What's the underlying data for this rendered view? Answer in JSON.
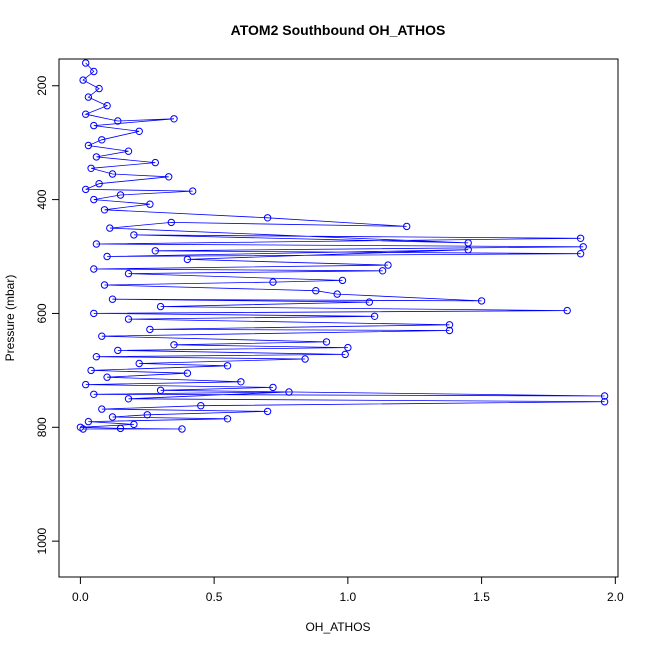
{
  "chart_data": {
    "type": "scatter",
    "title": "ATOM2 Southbound OH_ATHOS",
    "xlabel": "OH_ATHOS",
    "ylabel": "Pressure (mbar)",
    "xlim": [
      -0.08,
      2.01
    ],
    "ylim": [
      1063,
      153
    ],
    "y_reversed": true,
    "x_ticks": [
      0.0,
      0.5,
      1.0,
      1.5,
      2.0
    ],
    "x_tick_labels": [
      "0.0",
      "0.5",
      "1.0",
      "1.5",
      "2.0"
    ],
    "y_ticks": [
      200,
      400,
      600,
      800,
      1000
    ],
    "y_tick_labels": [
      "200",
      "400",
      "600",
      "800",
      "1000"
    ],
    "grid": false,
    "legend": "none",
    "marker": "open-circle",
    "connect_points": true,
    "color": "#0000ff",
    "series": [
      {
        "points": [
          [
            0.02,
            160
          ],
          [
            0.05,
            175
          ],
          [
            0.01,
            190
          ],
          [
            0.07,
            205
          ],
          [
            0.03,
            220
          ],
          [
            0.1,
            235
          ],
          [
            0.02,
            250
          ],
          [
            0.14,
            262
          ],
          [
            0.35,
            258
          ],
          [
            0.05,
            270
          ],
          [
            0.22,
            280
          ],
          [
            0.08,
            295
          ],
          [
            0.03,
            305
          ],
          [
            0.18,
            315
          ],
          [
            0.06,
            325
          ],
          [
            0.28,
            335
          ],
          [
            0.04,
            345
          ],
          [
            0.12,
            355
          ],
          [
            0.33,
            360
          ],
          [
            0.07,
            372
          ],
          [
            0.02,
            382
          ],
          [
            0.42,
            385
          ],
          [
            0.15,
            392
          ],
          [
            0.05,
            400
          ],
          [
            0.26,
            408
          ],
          [
            0.09,
            418
          ],
          [
            0.7,
            432
          ],
          [
            1.22,
            447
          ],
          [
            0.34,
            440
          ],
          [
            0.11,
            450
          ],
          [
            1.45,
            476
          ],
          [
            0.2,
            462
          ],
          [
            1.87,
            468
          ],
          [
            0.06,
            478
          ],
          [
            1.88,
            483
          ],
          [
            0.28,
            490
          ],
          [
            1.87,
            495
          ],
          [
            0.1,
            500
          ],
          [
            1.45,
            488
          ],
          [
            0.4,
            505
          ],
          [
            1.15,
            515
          ],
          [
            0.05,
            522
          ],
          [
            1.13,
            525
          ],
          [
            0.18,
            530
          ],
          [
            0.98,
            542
          ],
          [
            0.72,
            545
          ],
          [
            0.09,
            550
          ],
          [
            0.88,
            560
          ],
          [
            0.96,
            566
          ],
          [
            1.5,
            578
          ],
          [
            0.12,
            575
          ],
          [
            1.08,
            580
          ],
          [
            0.3,
            588
          ],
          [
            1.82,
            595
          ],
          [
            0.05,
            600
          ],
          [
            1.1,
            605
          ],
          [
            0.18,
            610
          ],
          [
            1.38,
            620
          ],
          [
            0.26,
            628
          ],
          [
            1.38,
            630
          ],
          [
            0.08,
            640
          ],
          [
            0.92,
            650
          ],
          [
            0.35,
            655
          ],
          [
            1.0,
            660
          ],
          [
            0.14,
            665
          ],
          [
            0.99,
            672
          ],
          [
            0.06,
            676
          ],
          [
            0.84,
            680
          ],
          [
            0.22,
            688
          ],
          [
            0.55,
            692
          ],
          [
            0.04,
            700
          ],
          [
            0.4,
            705
          ],
          [
            0.1,
            712
          ],
          [
            0.6,
            720
          ],
          [
            0.02,
            725
          ],
          [
            0.72,
            730
          ],
          [
            0.3,
            735
          ],
          [
            1.96,
            745
          ],
          [
            0.05,
            742
          ],
          [
            0.78,
            738
          ],
          [
            0.18,
            750
          ],
          [
            1.96,
            755
          ],
          [
            0.45,
            762
          ],
          [
            0.08,
            768
          ],
          [
            0.7,
            772
          ],
          [
            0.25,
            778
          ],
          [
            0.12,
            782
          ],
          [
            0.55,
            785
          ],
          [
            0.03,
            790
          ],
          [
            0.2,
            795
          ],
          [
            0.0,
            800
          ],
          [
            0.15,
            802
          ],
          [
            0.38,
            803
          ],
          [
            0.01,
            803
          ]
        ]
      }
    ]
  }
}
